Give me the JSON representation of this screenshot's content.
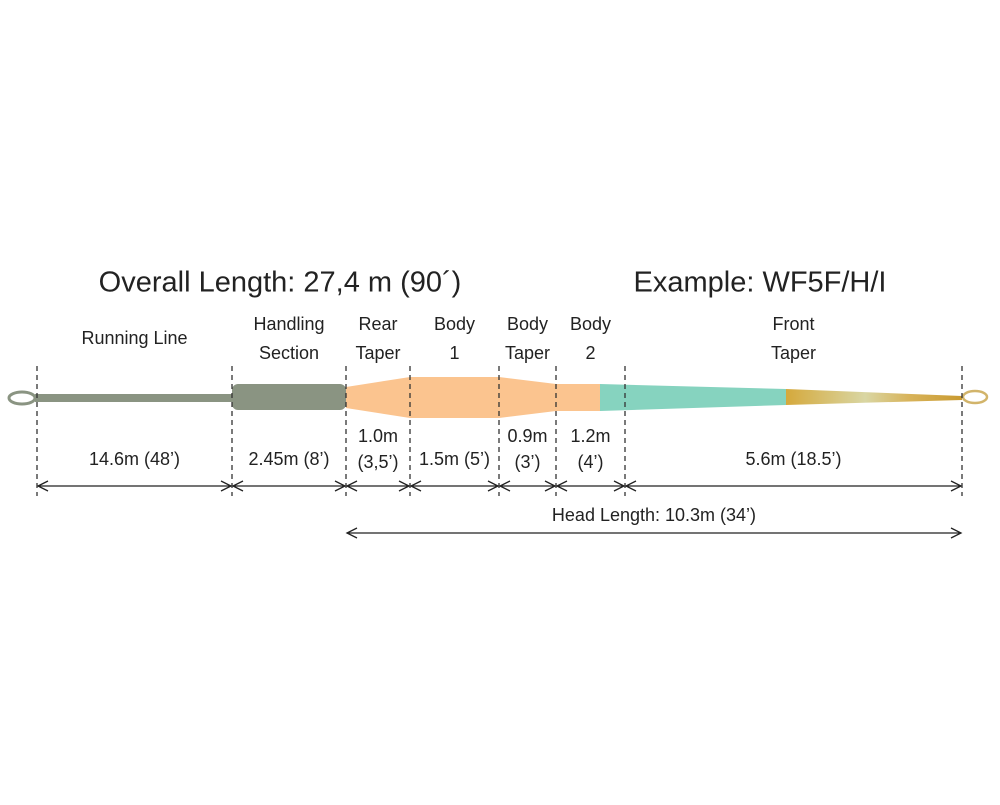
{
  "header": {
    "title": "Overall Length: 27,4 m (90´)",
    "example": "Example: WF5F/H/I"
  },
  "sections": [
    {
      "label": [
        "Running Line"
      ],
      "length": [
        "14.6m (48’)"
      ]
    },
    {
      "label": [
        "Handling",
        "Section"
      ],
      "length": [
        "2.45m (8’)"
      ]
    },
    {
      "label": [
        "Rear",
        "Taper"
      ],
      "length": [
        "1.0m",
        "(3,5’)"
      ]
    },
    {
      "label": [
        "Body",
        "1"
      ],
      "length": [
        "1.5m (5’)"
      ]
    },
    {
      "label": [
        "Body",
        "Taper"
      ],
      "length": [
        "0.9m",
        "(3’)"
      ]
    },
    {
      "label": [
        "Body",
        "2"
      ],
      "length": [
        "1.2m",
        "(4’)"
      ]
    },
    {
      "label": [
        "Front",
        "Taper"
      ],
      "length": [
        "5.6m (18.5’)"
      ]
    }
  ],
  "head_length": "Head Length: 10.3m (34’)"
}
